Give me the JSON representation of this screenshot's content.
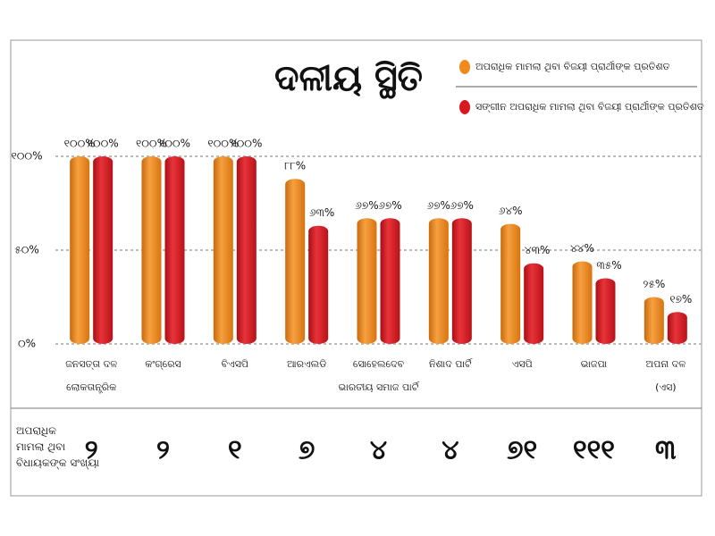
{
  "chart_data": {
    "type": "bar",
    "title": "ଦଳୀୟ ସ୍ଥିତି",
    "categories": [
      "ଜନସତ୍ତା ଦଳ ଲୋକତାନ୍ତ୍ରିକ",
      "କଂଗ୍ରେସ",
      "ବିଏସପି",
      "ଆରଏଲଡି",
      "ସୋହେଲଦେବ ଭାରତୀୟ ସମାଜ ପାର୍ଟି",
      "ନିଶାଦ ପାର୍ଟି",
      "ଏସପି",
      "ଭାଜପା",
      "ଅପନା ଦଳ (ଏସ)"
    ],
    "series": [
      {
        "name": "ଅପରାଧିକ ମାମଲା ଥିବା ବିଜୟୀ ପ୍ରାର୍ଥୀଙ୍କ ପ୍ରତିଶତ",
        "color": "#f08a1c",
        "values": [
          100,
          100,
          100,
          88,
          67,
          67,
          64,
          44,
          25
        ],
        "value_labels": [
          "୧୦୦%",
          "୧୦୦%",
          "୧୦୦%",
          "୮୮%",
          "୬୭%",
          "୬୭%",
          "୬୪%",
          "୪୪%",
          "୨୫%"
        ]
      },
      {
        "name": "ସଙ୍ଗୀନ ଅପରାଧିକ ମାମଲା ଥିବା ବିଜୟୀ ପ୍ରାର୍ଥୀଙ୍କ ପ୍ରତିଶତ",
        "color": "#d7191f",
        "values": [
          100,
          100,
          100,
          63,
          67,
          67,
          43,
          35,
          17
        ],
        "value_labels": [
          "୧୦୦%",
          "୧୦୦%",
          "୧୦୦%",
          "୬୩%",
          "୬୭%",
          "୬୭%",
          "୪୩%",
          "୩୫%",
          "୧୭%"
        ]
      }
    ],
    "ylim": [
      0,
      100
    ],
    "yticks": [
      {
        "value": 0,
        "label": "୦%"
      },
      {
        "value": 50,
        "label": "୫୦%"
      },
      {
        "value": 100,
        "label": "୧୦୦%"
      }
    ],
    "grid": true,
    "count_row": {
      "label": "ଅପରାଧିକ ମାମଲା ଥିବା ବିଧାୟକଙ୍କ ସଂଖ୍ୟା",
      "values": [
        "୨",
        "୨",
        "୧",
        "୭",
        "୪",
        "୪",
        "୭୧",
        "୧୧୧",
        "୩"
      ]
    }
  }
}
